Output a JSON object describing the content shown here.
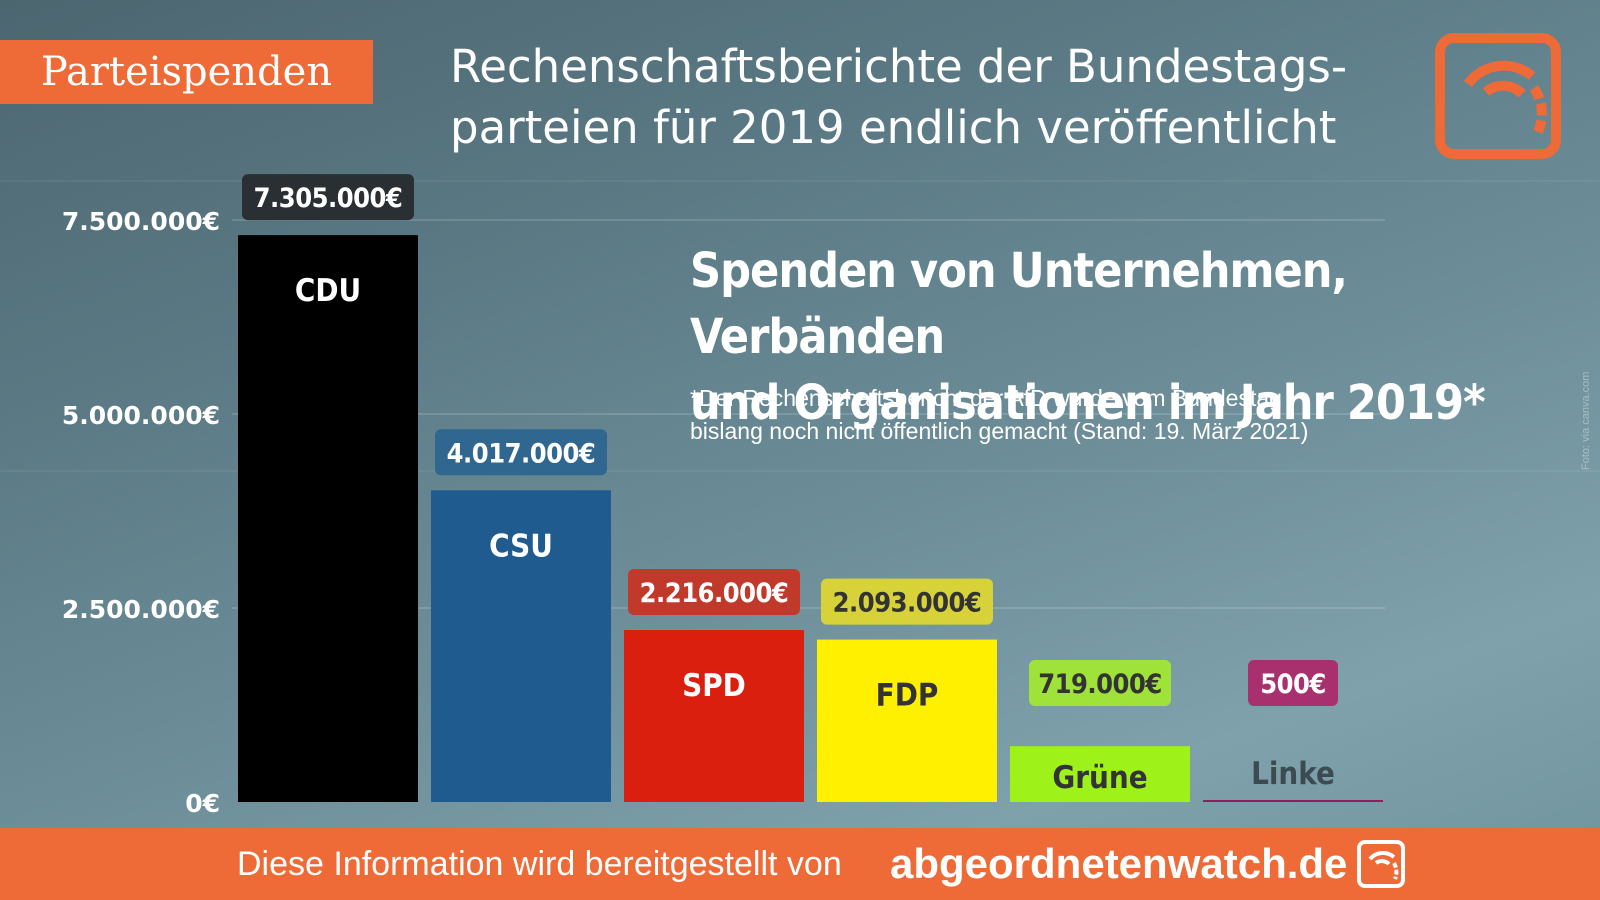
{
  "tag": "Parteispenden",
  "headline_line1": "Rechenschaftsberichte der Bundestags-",
  "headline_line2": "parteien für 2019 endlich veröffentlicht",
  "subtitle_line1": "Spenden von Unternehmen, Verbänden",
  "subtitle_line2": "und Organisationen im Jahr 2019*",
  "footnote_line1": "*Der Rechenschaftsbericht der AfD wurde vom Bundestag",
  "footnote_line2": "bislang noch nicht öffentlich gemacht (Stand: 19. März 2021)",
  "photo_credit": "Foto: via canva.com",
  "footer": {
    "text": "Diese Information wird bereitgestellt von",
    "brand": "abgeordnetenwatch.de"
  },
  "colors": {
    "accent": "#ee6a37"
  },
  "chart_data": {
    "type": "bar",
    "title": "Spenden von Unternehmen, Verbänden und Organisationen im Jahr 2019*",
    "ylim": [
      0,
      7500000
    ],
    "yticks": [
      0,
      2500000,
      5000000,
      7500000
    ],
    "ytick_labels": [
      "0€",
      "2.500.000€",
      "5.000.000€",
      "7.500.000€"
    ],
    "grid": true,
    "bars": [
      {
        "party": "CDU",
        "value": 7305000,
        "label": "7.305.000€",
        "bar_color": "#000000",
        "name_color": "#ffffff",
        "badge_color": "#2a2f33",
        "badge_text_color": "#ffffff"
      },
      {
        "party": "CSU",
        "value": 4017000,
        "label": "4.017.000€",
        "bar_color": "#1f5b8f",
        "name_color": "#ffffff",
        "badge_color": "#2f6791",
        "badge_text_color": "#ffffff"
      },
      {
        "party": "SPD",
        "value": 2216000,
        "label": "2.216.000€",
        "bar_color": "#db1f0f",
        "name_color": "#ffffff",
        "badge_color": "#c0392b",
        "badge_text_color": "#ffffff"
      },
      {
        "party": "FDP",
        "value": 2093000,
        "label": "2.093.000€",
        "bar_color": "#fff000",
        "name_color": "#333333",
        "badge_color": "#d8d23a",
        "badge_text_color": "#333333"
      },
      {
        "party": "Grüne",
        "value": 719000,
        "label": "719.000€",
        "bar_color": "#9ef21a",
        "name_color": "#333333",
        "badge_color": "#9ee23a",
        "badge_text_color": "#333333"
      },
      {
        "party": "Linke",
        "value": 500,
        "label": "500€",
        "bar_color": "#8e1f5e",
        "name_color": "#3d4a52",
        "badge_color": "#a8306e",
        "badge_text_color": "#ffffff"
      }
    ]
  }
}
